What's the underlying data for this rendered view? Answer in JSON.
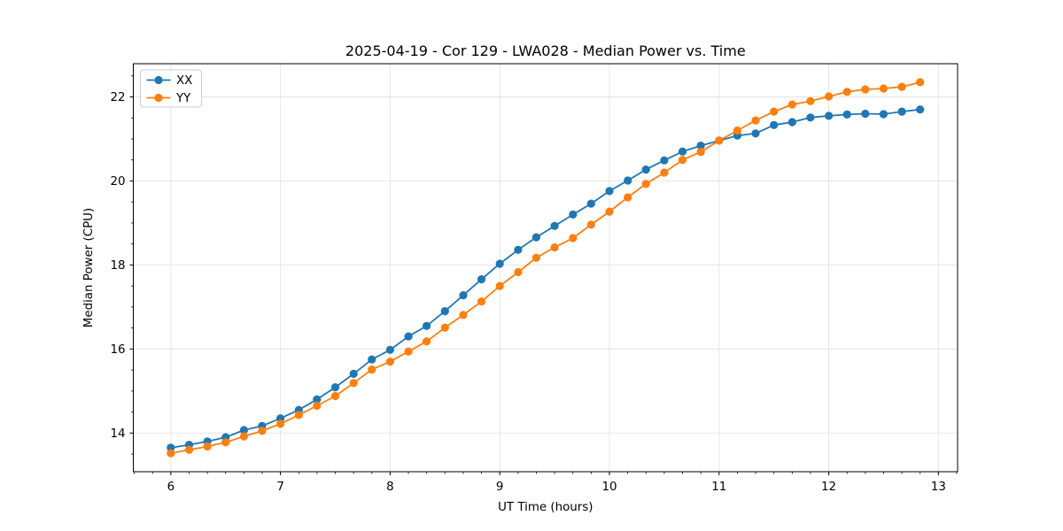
{
  "chart_data": {
    "type": "line",
    "title": "2025-04-19 - Cor 129 - LWA028 - Median Power vs. Time",
    "xlabel": "UT Time (hours)",
    "ylabel": "Median Power (CPU)",
    "xlim": [
      5.658,
      13.175
    ],
    "ylim": [
      13.08,
      22.79
    ],
    "x_ticks": [
      6,
      7,
      8,
      9,
      10,
      11,
      12,
      13
    ],
    "y_ticks": [
      14,
      16,
      18,
      20,
      22
    ],
    "x_minor_step": 0.16667,
    "y_minor_step": 0.5,
    "grid": true,
    "grid_color": "#e3e3e3",
    "legend_position": "upper left",
    "x": [
      6.0,
      6.167,
      6.333,
      6.5,
      6.667,
      6.833,
      7.0,
      7.167,
      7.333,
      7.5,
      7.667,
      7.833,
      8.0,
      8.167,
      8.333,
      8.5,
      8.667,
      8.833,
      9.0,
      9.167,
      9.333,
      9.5,
      9.667,
      9.833,
      10.0,
      10.167,
      10.333,
      10.5,
      10.667,
      10.833,
      11.0,
      11.167,
      11.333,
      11.5,
      11.667,
      11.833,
      12.0,
      12.167,
      12.333,
      12.5,
      12.667,
      12.833
    ],
    "series": [
      {
        "name": "XX",
        "color": "#1f77b4",
        "values": [
          13.65,
          13.72,
          13.8,
          13.9,
          14.07,
          14.17,
          14.35,
          14.55,
          14.8,
          15.09,
          15.41,
          15.75,
          15.98,
          16.3,
          16.55,
          16.9,
          17.28,
          17.66,
          18.03,
          18.36,
          18.66,
          18.93,
          19.2,
          19.46,
          19.76,
          20.01,
          20.27,
          20.49,
          20.7,
          20.84,
          20.96,
          21.08,
          21.13,
          21.33,
          21.4,
          21.51,
          21.55,
          21.58,
          21.6,
          21.59,
          21.65,
          21.7
        ]
      },
      {
        "name": "YY",
        "color": "#ff7f0e",
        "values": [
          13.52,
          13.6,
          13.68,
          13.78,
          13.92,
          14.05,
          14.22,
          14.43,
          14.65,
          14.88,
          15.19,
          15.51,
          15.7,
          15.94,
          16.18,
          16.51,
          16.81,
          17.13,
          17.5,
          17.83,
          18.17,
          18.42,
          18.64,
          18.96,
          19.27,
          19.61,
          19.93,
          20.2,
          20.5,
          20.69,
          20.96,
          21.2,
          21.44,
          21.65,
          21.82,
          21.9,
          22.01,
          22.12,
          22.18,
          22.2,
          22.24,
          22.35
        ]
      }
    ]
  }
}
